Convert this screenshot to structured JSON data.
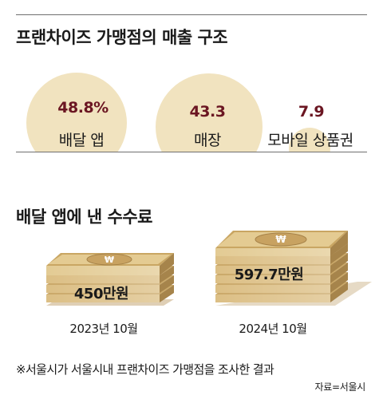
{
  "section1": {
    "title": "프랜차이즈 가맹점의 매출 구조"
  },
  "section2": {
    "title": "배달 앱에 낸 수수료"
  },
  "chart_data": [
    {
      "type": "bubble",
      "title": "프랜차이즈 가맹점의 매출 구조",
      "categories": [
        "배달 앱",
        "매장",
        "모바일 상품권"
      ],
      "values": [
        48.8,
        43.3,
        7.9
      ],
      "value_labels": [
        "48.8%",
        "43.3",
        "7.9"
      ]
    },
    {
      "type": "bar",
      "title": "배달 앱에 낸 수수료",
      "categories": [
        "2023년 10월",
        "2024년 10월"
      ],
      "values": [
        450,
        597.7
      ],
      "value_labels": [
        "450만원",
        "597.7만원"
      ]
    }
  ],
  "colors": {
    "circle_fill": "#f1e3bf",
    "percent_text": "#6b1622",
    "money_light": "#e6cf99",
    "money_mid": "#d8b979",
    "money_dark": "#b8955a"
  },
  "icons": {
    "currency": "won-sign-icon"
  },
  "footnote": "※서울시가 서울시내 프랜차이즈 가맹점을 조사한 결과",
  "source": "자료=서울시"
}
